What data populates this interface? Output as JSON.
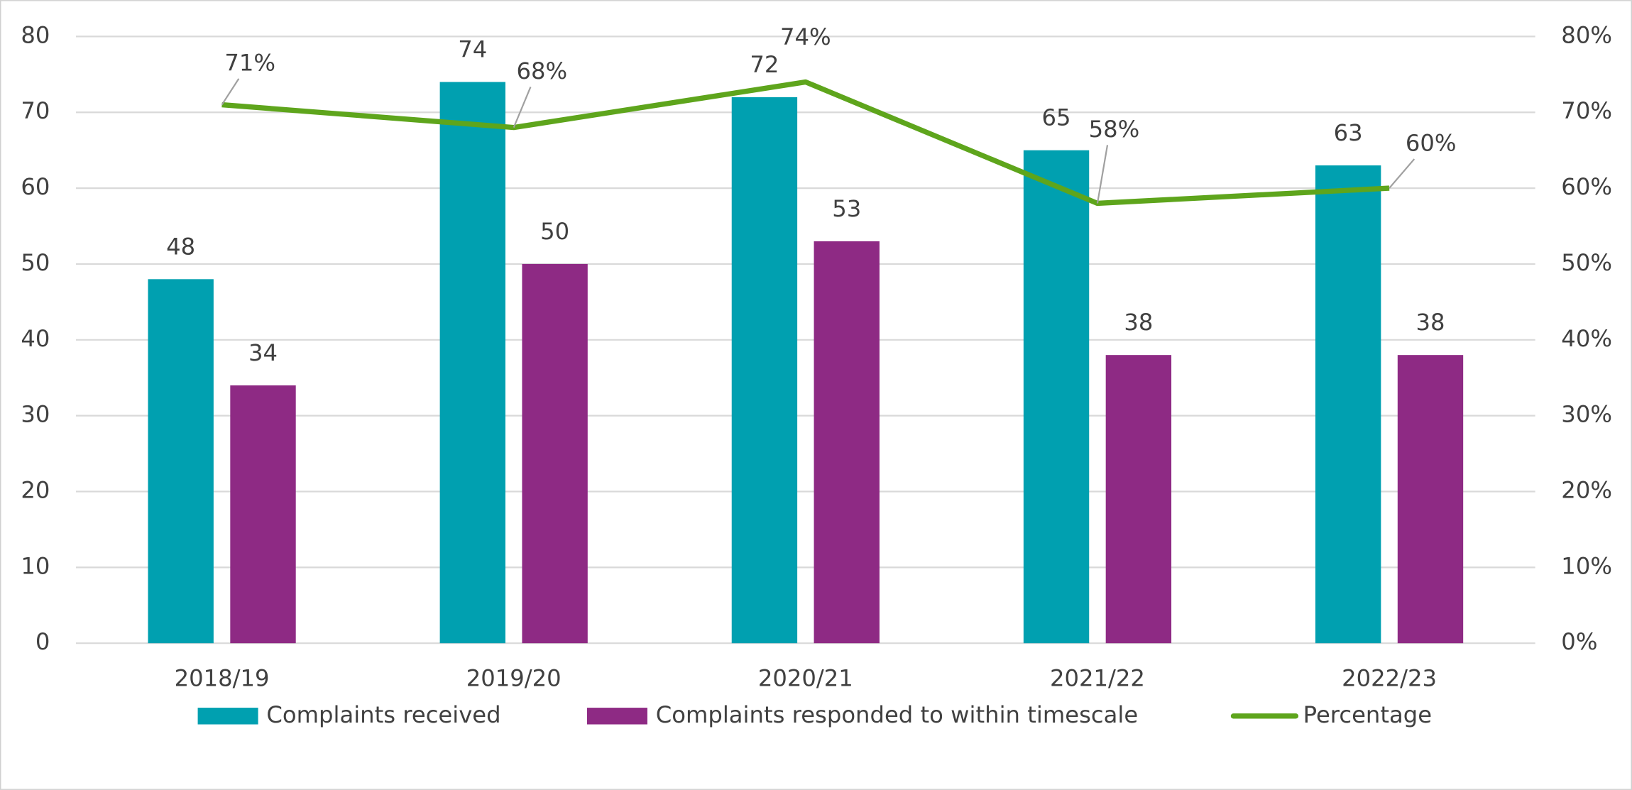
{
  "chart_data": {
    "type": "bar",
    "categories": [
      "2018/19",
      "2019/20",
      "2020/21",
      "2021/22",
      "2022/23"
    ],
    "series": [
      {
        "name": "Complaints received",
        "type": "bar",
        "color": "#00a0b0",
        "values": [
          48,
          74,
          72,
          65,
          63
        ]
      },
      {
        "name": "Complaints responded to within timescale",
        "type": "bar",
        "color": "#8e2a84",
        "values": [
          34,
          50,
          53,
          38,
          38
        ]
      },
      {
        "name": "Percentage",
        "type": "line",
        "axis": "y2",
        "color": "#5ea51c",
        "values": [
          71,
          68,
          74,
          58,
          60
        ],
        "value_labels": [
          "71%",
          "68%",
          "74%",
          "58%",
          "60%"
        ]
      }
    ],
    "ylim": [
      0,
      80
    ],
    "yticks": [
      0,
      10,
      20,
      30,
      40,
      50,
      60,
      70,
      80
    ],
    "y2lim": [
      0,
      80
    ],
    "y2ticks": [
      {
        "value": 0,
        "label": "0%"
      },
      {
        "value": 10,
        "label": "10%"
      },
      {
        "value": 20,
        "label": "20%"
      },
      {
        "value": 30,
        "label": "30%"
      },
      {
        "value": 40,
        "label": "40%"
      },
      {
        "value": 50,
        "label": "50%"
      },
      {
        "value": 60,
        "label": "60%"
      },
      {
        "value": 70,
        "label": "70%"
      },
      {
        "value": 80,
        "label": "80%"
      }
    ],
    "grid": true,
    "legend": "bottom"
  }
}
